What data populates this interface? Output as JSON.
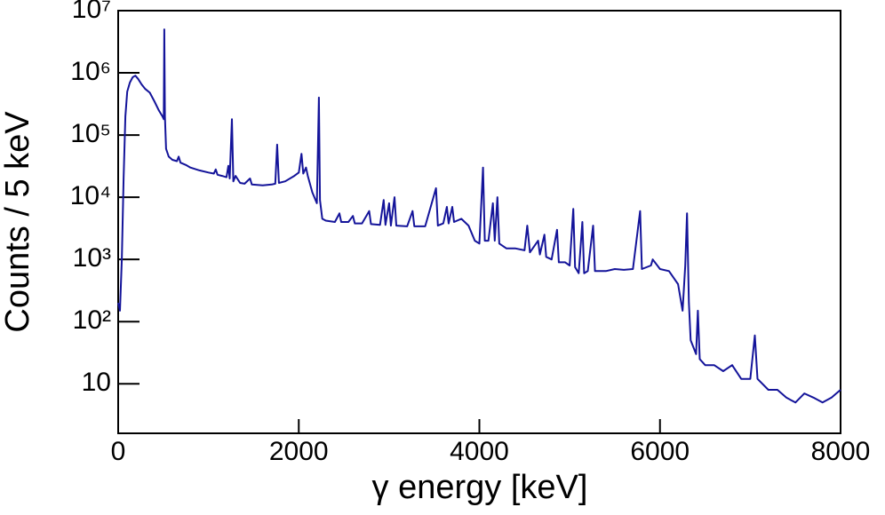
{
  "chart_data": {
    "type": "line",
    "xlabel": "γ energy [keV]",
    "ylabel": "Counts / 5 keV",
    "log_y": true,
    "color": "#14149a",
    "xlim": [
      0,
      8000
    ],
    "xticks": [
      0,
      2000,
      4000,
      6000,
      8000
    ],
    "ylim": [
      1.6,
      10000000
    ],
    "yticks": [
      10,
      {
        "value": 100,
        "label": "10²"
      },
      {
        "value": 1000,
        "label": "10³"
      },
      {
        "value": 10000,
        "label": "10⁴"
      },
      {
        "value": 100000,
        "label": "10⁵"
      },
      {
        "value": 1000000,
        "label": "10⁶"
      },
      {
        "value": 10000000,
        "label": "10⁷"
      }
    ],
    "x": [
      0,
      20,
      40,
      60,
      80,
      100,
      130,
      160,
      190,
      220,
      260,
      300,
      350,
      400,
      450,
      490,
      505,
      511,
      518,
      530,
      560,
      600,
      650,
      670,
      690,
      750,
      800,
      900,
      1000,
      1060,
      1080,
      1100,
      1150,
      1200,
      1220,
      1235,
      1260,
      1275,
      1300,
      1350,
      1400,
      1460,
      1480,
      1600,
      1700,
      1740,
      1760,
      1780,
      1850,
      1950,
      2000,
      2030,
      2050,
      2080,
      2100,
      2150,
      2200,
      2223,
      2235,
      2260,
      2300,
      2400,
      2450,
      2470,
      2550,
      2600,
      2620,
      2700,
      2780,
      2800,
      2900,
      2940,
      2960,
      3000,
      3020,
      3060,
      3080,
      3200,
      3260,
      3280,
      3400,
      3520,
      3540,
      3600,
      3640,
      3660,
      3700,
      3720,
      3800,
      3880,
      3950,
      4000,
      4040,
      4060,
      4100,
      4150,
      4170,
      4200,
      4220,
      4300,
      4400,
      4500,
      4530,
      4560,
      4650,
      4670,
      4720,
      4740,
      4800,
      4860,
      4880,
      4950,
      5000,
      5040,
      5060,
      5100,
      5140,
      5160,
      5200,
      5260,
      5280,
      5400,
      5500,
      5600,
      5700,
      5780,
      5800,
      5900,
      5920,
      6000,
      6100,
      6200,
      6250,
      6280,
      6300,
      6320,
      6340,
      6400,
      6420,
      6440,
      6500,
      6600,
      6700,
      6800,
      6820,
      6900,
      7000,
      7050,
      7080,
      7200,
      7300,
      7400,
      7500,
      7600,
      7700,
      7800,
      7900,
      8000
    ],
    "values": [
      200,
      150,
      1000,
      20000,
      200000,
      500000,
      700000,
      850000,
      900000,
      800000,
      650000,
      550000,
      480000,
      350000,
      250000,
      200000,
      180000,
      5000000,
      200000,
      60000,
      45000,
      40000,
      38000,
      45000,
      36000,
      33000,
      30000,
      27000,
      25000,
      24000,
      28000,
      23000,
      22000,
      21000,
      32000,
      20000,
      180000,
      18000,
      22000,
      17000,
      16500,
      20000,
      16000,
      15500,
      16000,
      16500,
      70000,
      17000,
      18000,
      22000,
      25000,
      50000,
      24000,
      30000,
      22000,
      12000,
      8000,
      400000,
      9000,
      4500,
      4200,
      4000,
      5500,
      4000,
      4000,
      5000,
      3800,
      3800,
      6000,
      3700,
      3600,
      9000,
      3600,
      8000,
      3500,
      10000,
      3500,
      3400,
      6000,
      3400,
      3400,
      14000,
      3500,
      3800,
      7000,
      3800,
      7000,
      4000,
      4500,
      3500,
      2000,
      1800,
      30000,
      2000,
      2000,
      8000,
      2000,
      10000,
      1800,
      1500,
      1500,
      1400,
      3500,
      1300,
      2000,
      1200,
      2500,
      1100,
      1000,
      3000,
      900,
      900,
      800,
      6500,
      750,
      600,
      4000,
      600,
      650,
      3500,
      650,
      650,
      700,
      680,
      700,
      6000,
      700,
      800,
      1000,
      700,
      650,
      400,
      150,
      800,
      5500,
      200,
      50,
      30,
      150,
      25,
      20,
      20,
      16,
      20,
      18,
      12,
      12,
      60,
      12,
      8,
      8,
      6,
      5,
      7,
      6,
      5,
      6,
      8
    ]
  }
}
